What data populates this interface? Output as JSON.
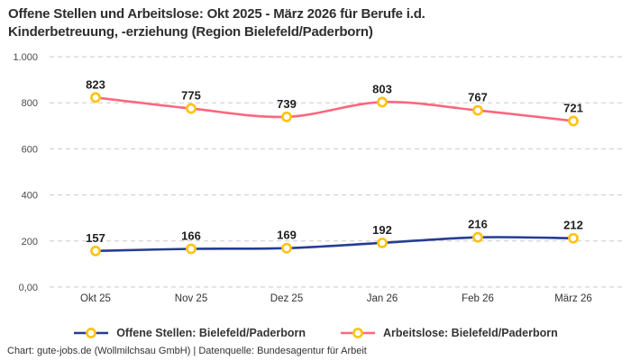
{
  "title": {
    "line1": "Offene Stellen und Arbeitslose: Okt 2025 - März 2026 für Berufe i.d.",
    "line2": "Kinderbetreuung, -erziehung (Region Bielefeld/Paderborn)"
  },
  "footer": "Chart: gute-jobs.de (Wollmilchsau GmbH) | Datenquelle: Bundesagentur für Arbeit",
  "colors": {
    "offene_stellen_line": "#263c94",
    "arbeitslose_line": "#fa687e",
    "marker_ring": "#ffc20e",
    "marker_fill": "#ffffff",
    "gridline": "#cbcbcb",
    "value_label": "#1f1f1f",
    "axis_text": "#4a4a4a",
    "category_text": "#333333"
  },
  "chart_data": {
    "type": "line",
    "title": "Offene Stellen und Arbeitslose: Okt 2025 - März 2026 für Berufe i.d. Kinderbetreuung, -erziehung (Region Bielefeld/Paderborn)",
    "categories": [
      "Okt 25",
      "Nov 25",
      "Dez 25",
      "Jan 26",
      "Feb 26",
      "März 26"
    ],
    "series": [
      {
        "name": "Offene Stellen: Bielefeld/Paderborn",
        "values": [
          157,
          166,
          169,
          192,
          216,
          212
        ],
        "color": "#263c94"
      },
      {
        "name": "Arbeitslose: Bielefeld/Paderborn",
        "values": [
          823,
          775,
          739,
          803,
          767,
          721
        ],
        "color": "#fa687e"
      }
    ],
    "xlabel": "",
    "ylabel": "",
    "ylim": [
      0,
      1000
    ],
    "yticks": [
      0,
      200,
      400,
      600,
      800,
      1000
    ],
    "ytick_labels": [
      "0,00",
      "200",
      "400",
      "600",
      "800",
      "1.000"
    ],
    "grid": "horizontal-dashed",
    "legend_position": "bottom",
    "data_labels": true,
    "marker": {
      "shape": "circle-ring",
      "ring_color": "#ffc20e",
      "fill": "#ffffff"
    }
  }
}
